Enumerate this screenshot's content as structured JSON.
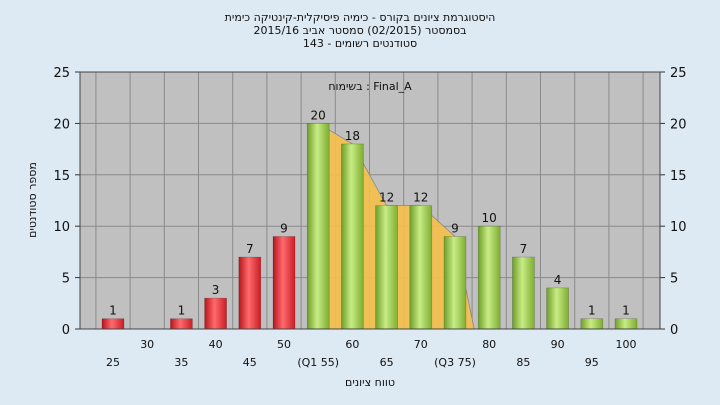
{
  "title_lines": [
    "היסטוגרמת ציונים בקורס - כימיה פיסיקלית-קינטיקה כימית",
    "בסמסטר  (02/2015)  סמסטר אביב 2015/16",
    "סטודנטים רשומים - 143"
  ],
  "chart_data": {
    "type": "bar",
    "annotation": "בשימוח : Final_A",
    "xlabel": "טווח ציונים",
    "ylabel": "מספר סטודנטים",
    "ylim": [
      0,
      25
    ],
    "yticks": [
      "0",
      "5",
      "10",
      "15",
      "20",
      "25"
    ],
    "categories": [
      "25",
      "30",
      "35",
      "40",
      "45",
      "50",
      "(Q1 55)",
      "60",
      "65",
      "70",
      "(Q3 75)",
      "80",
      "85",
      "90",
      "95",
      "100"
    ],
    "values": [
      1,
      0,
      1,
      3,
      7,
      9,
      20,
      18,
      12,
      12,
      9,
      10,
      7,
      4,
      1,
      1
    ],
    "data_labels": [
      "1",
      "",
      "1",
      "3",
      "7",
      "9",
      "20",
      "18",
      "12",
      "12",
      "9",
      "10",
      "7",
      "4",
      "1",
      "1"
    ],
    "bar_colors": [
      "red",
      "red",
      "red",
      "red",
      "red",
      "red",
      "green",
      "green",
      "green",
      "green",
      "green",
      "green",
      "green",
      "green",
      "green",
      "green"
    ],
    "iqr_band": {
      "from_index": 6,
      "to_index": 10,
      "color": "#f5c04a"
    },
    "colors": {
      "red": "#e8343a",
      "green": "#9ccc4a",
      "plot_bg": "#c0c0c0",
      "grid": "#8a8a8a",
      "page_bg": "#dde9f3"
    },
    "grid": true
  }
}
